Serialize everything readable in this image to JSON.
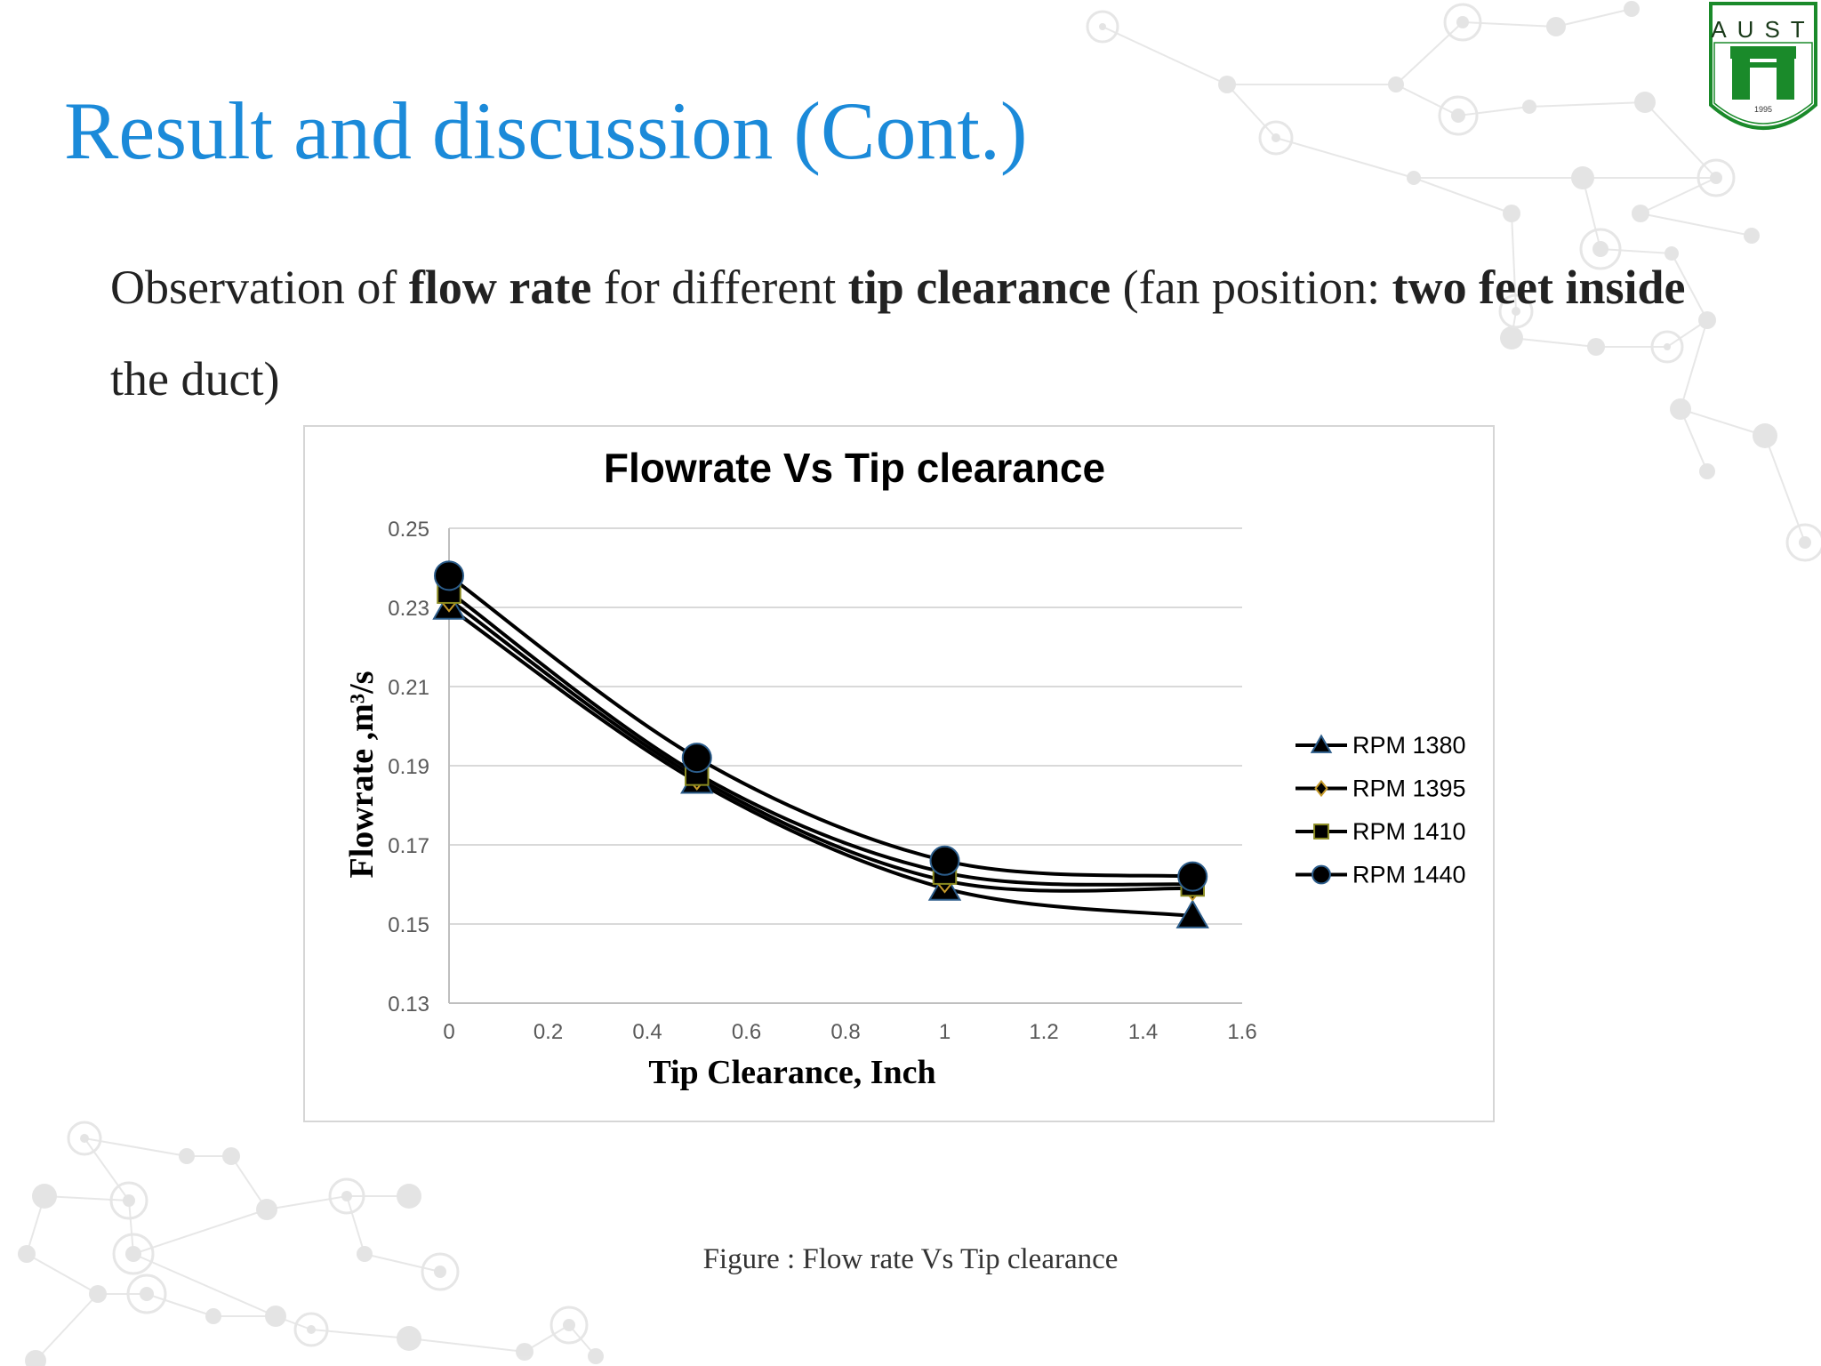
{
  "slide": {
    "title": "Result and discussion (Cont.)",
    "subtitle": {
      "t1": "Observation of ",
      "b1": "flow rate",
      "t2": " for different ",
      "b2": "tip clearance",
      "t3": " (fan position: ",
      "b3": "two feet inside",
      "t4": " the duct)"
    },
    "caption": "Figure : Flow rate Vs Tip clearance",
    "title_color": "#1b8ad9"
  },
  "logo": {
    "lettering": "AUST",
    "year": "1995",
    "icon": "university-emblem-icon",
    "color": "#1a8a2a"
  },
  "chart_data": {
    "type": "line",
    "title": "Flowrate Vs Tip clearance",
    "xlabel": "Tip Clearance, Inch",
    "ylabel": "Flowrate ,m³/s",
    "xlim": [
      0,
      1.6
    ],
    "ylim": [
      0.13,
      0.25
    ],
    "xticks": [
      "0",
      "0.2",
      "0.4",
      "0.6",
      "0.8",
      "1",
      "1.2",
      "1.4",
      "1.6"
    ],
    "yticks": [
      "0.13",
      "0.15",
      "0.17",
      "0.19",
      "0.21",
      "0.23",
      "0.25"
    ],
    "grid": "horizontal",
    "legend_position": "right",
    "x": [
      0,
      0.5,
      1,
      1.5
    ],
    "series": [
      {
        "name": "RPM 1380",
        "marker": "triangle",
        "values": [
          0.23,
          0.186,
          0.159,
          0.152
        ]
      },
      {
        "name": "RPM 1395",
        "marker": "diamond",
        "values": [
          0.232,
          0.187,
          0.161,
          0.159
        ]
      },
      {
        "name": "RPM 1410",
        "marker": "square",
        "values": [
          0.234,
          0.188,
          0.163,
          0.16
        ]
      },
      {
        "name": "RPM 1440",
        "marker": "circle",
        "values": [
          0.238,
          0.192,
          0.166,
          0.162
        ]
      }
    ],
    "colors": {
      "line": "#000000",
      "triangle_fill": "#1f3a5f",
      "diamond_fill": "#6b4a10",
      "square_fill": "#2a2a10",
      "circle_fill": "#000000",
      "gridline": "#d9d9d9",
      "axis": "#bfbfbf",
      "tick_text": "#595959"
    }
  }
}
